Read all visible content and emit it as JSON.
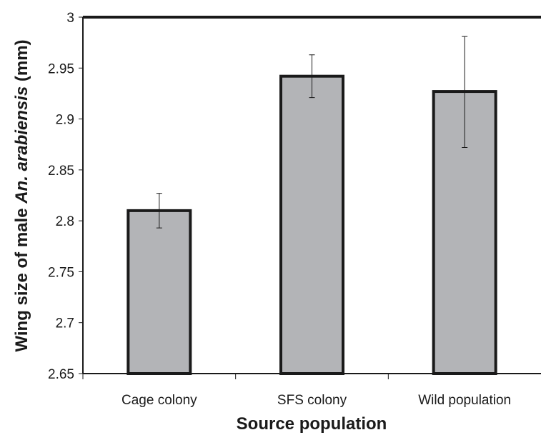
{
  "chart_data": {
    "type": "bar",
    "categories": [
      "Cage colony",
      "SFS colony",
      "Wild population"
    ],
    "values": [
      2.81,
      2.942,
      2.927
    ],
    "error_upper": [
      2.827,
      2.963,
      2.981
    ],
    "error_lower": [
      2.793,
      2.921,
      2.872
    ],
    "ylim": [
      2.65,
      3.0
    ],
    "yticks": [
      "2.65",
      "2.7",
      "2.75",
      "2.8",
      "2.85",
      "2.9",
      "2.95",
      "3"
    ],
    "ytick_values": [
      2.65,
      2.7,
      2.75,
      2.8,
      2.85,
      2.9,
      2.95,
      3.0
    ],
    "xlabel": "Source population",
    "ylabel_prefix": "Wing size of male ",
    "ylabel_italic": "An. arabiensis",
    "ylabel_suffix": " (mm)",
    "grid": false,
    "legend": "none",
    "colors": {
      "bar_fill": "#b3b4b7",
      "bar_stroke": "#1a1a1a",
      "axis": "#1a1a1a",
      "error": "#1a1a1a"
    }
  }
}
